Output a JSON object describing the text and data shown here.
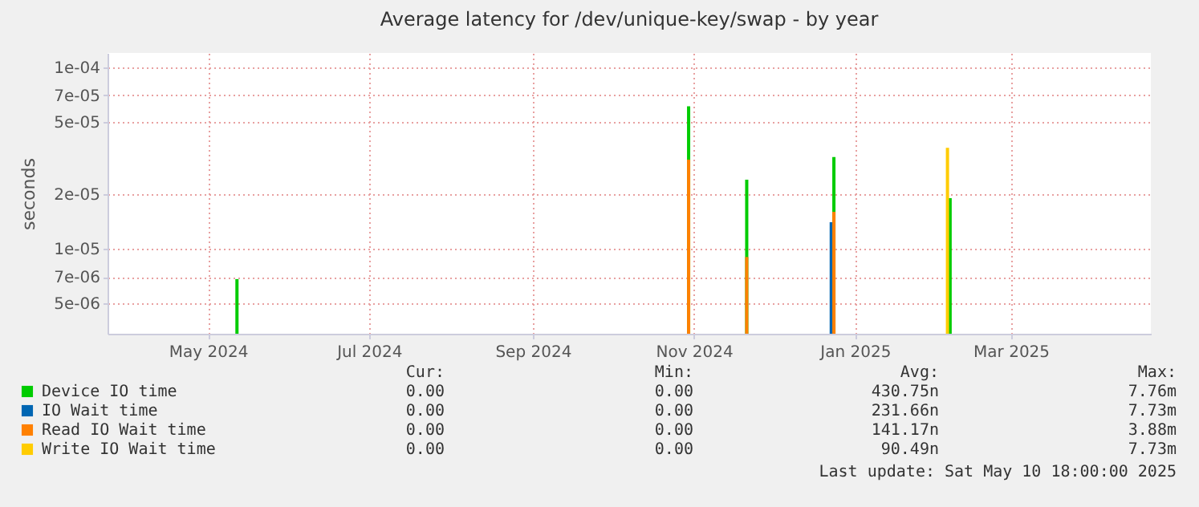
{
  "chart_data": {
    "type": "bar",
    "title": "Average latency for /dev/unique-key/swap - by year",
    "ylabel": "seconds",
    "log": "y",
    "grid": true,
    "legend": "bottom",
    "xlim": [
      "2024-03-24",
      "2025-04-23"
    ],
    "xticks": [
      {
        "value": "2024-05-01",
        "label": "May 2024"
      },
      {
        "value": "2024-07-01",
        "label": "Jul 2024"
      },
      {
        "value": "2024-09-01",
        "label": "Sep 2024"
      },
      {
        "value": "2024-11-01",
        "label": "Nov 2024"
      },
      {
        "value": "2025-01-01",
        "label": "Jan 2025"
      },
      {
        "value": "2025-03-01",
        "label": "Mar 2025"
      }
    ],
    "ylim": [
      3.4e-06,
      0.00012
    ],
    "yticks": [
      {
        "value": 0.0001,
        "label": "1e-04"
      },
      {
        "value": 7e-05,
        "label": "7e-05"
      },
      {
        "value": 5e-05,
        "label": "5e-05"
      },
      {
        "value": 2e-05,
        "label": "2e-05"
      },
      {
        "value": 1e-05,
        "label": "1e-05"
      },
      {
        "value": 7e-06,
        "label": "7e-06"
      },
      {
        "value": 5e-06,
        "label": "5e-06"
      }
    ],
    "series": [
      {
        "name": "Device IO time",
        "color": "#00cc00",
        "x": [
          "2024-05-12",
          "2024-10-30",
          "2024-11-21",
          "2024-12-24",
          "2025-02-06"
        ],
        "values": [
          6.8e-06,
          6.1e-05,
          2.4e-05,
          3.2e-05,
          1.9e-05
        ]
      },
      {
        "name": "IO Wait time",
        "color": "#0066b3",
        "x": [
          "2024-12-23"
        ],
        "values": [
          1.4e-05
        ]
      },
      {
        "name": "Read IO Wait time",
        "color": "#ff8000",
        "x": [
          "2024-10-30",
          "2024-11-21",
          "2024-12-24"
        ],
        "values": [
          3.1e-05,
          9e-06,
          1.6e-05
        ]
      },
      {
        "name": "Write IO Wait time",
        "color": "#ffcc00",
        "x": [
          "2025-02-05"
        ],
        "values": [
          3.6e-05
        ]
      }
    ],
    "annotations": [
      "Cur:",
      "Min:",
      "Avg:",
      "Max:",
      "0.00",
      "0.00",
      "430.75n",
      "7.76m",
      "0.00",
      "0.00",
      "231.66n",
      "7.73m",
      "0.00",
      "0.00",
      "141.17n",
      "3.88m",
      "0.00",
      "0.00",
      "90.49n",
      "7.73m",
      "Last update: Sat May 10 18:00:00 2025"
    ]
  }
}
